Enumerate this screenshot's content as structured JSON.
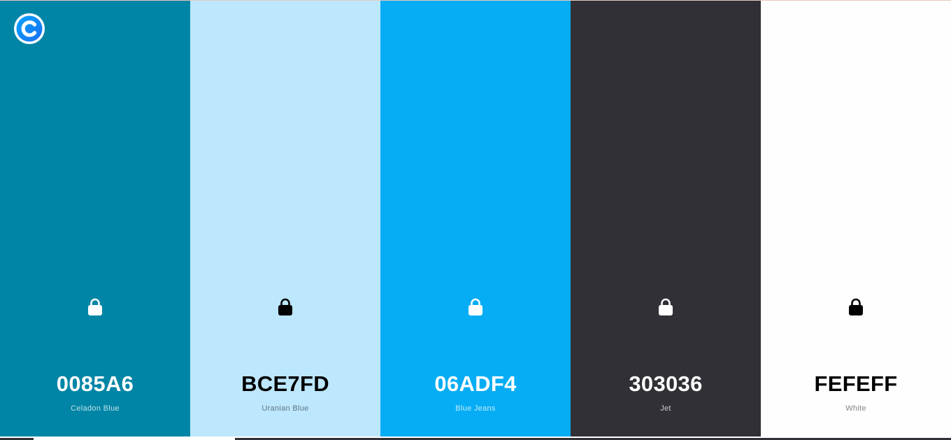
{
  "app": {
    "logo_icon": "coolors-logo-icon",
    "accent": "#0a9cf0"
  },
  "palette": [
    {
      "hex": "0085A6",
      "name": "Celadon Blue",
      "color": "#0085A6",
      "tone": "dark",
      "lock_icon": "lock-icon"
    },
    {
      "hex": "BCE7FD",
      "name": "Uranian Blue",
      "color": "#BCE7FD",
      "tone": "light",
      "lock_icon": "lock-icon"
    },
    {
      "hex": "06ADF4",
      "name": "Blue Jeans",
      "color": "#06ADF4",
      "tone": "dark",
      "lock_icon": "lock-icon"
    },
    {
      "hex": "303036",
      "name": "Jet",
      "color": "#303036",
      "tone": "dark",
      "lock_icon": "lock-icon"
    },
    {
      "hex": "FEFEFF",
      "name": "White",
      "color": "#FEFEFF",
      "tone": "light",
      "lock_icon": "lock-icon"
    }
  ]
}
